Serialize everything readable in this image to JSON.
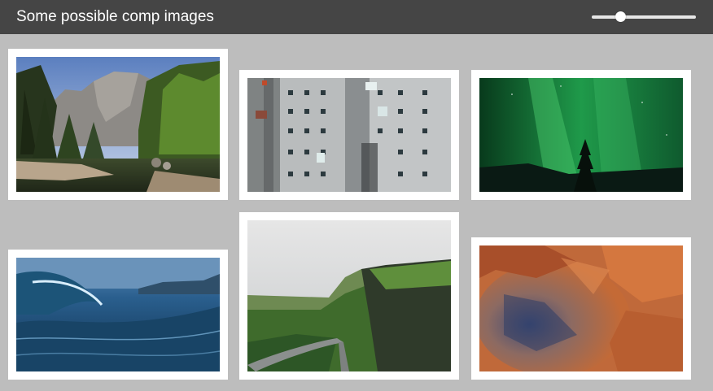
{
  "header": {
    "title": "Some possible comp images",
    "zoom_slider": {
      "level": 0.27
    }
  },
  "gallery": {
    "images": [
      {
        "name": "image-yosemite-valley",
        "subject": "mountain valley with forest and river"
      },
      {
        "name": "image-weathered-building",
        "subject": "weathered concrete building facade"
      },
      {
        "name": "image-aurora-night",
        "subject": "green aurora over a tree silhouette"
      },
      {
        "name": "image-ocean-wave",
        "subject": "breaking blue ocean wave"
      },
      {
        "name": "image-green-cliffs",
        "subject": "green cliffs with winding road"
      },
      {
        "name": "image-crater",
        "subject": "orange crater landscape"
      }
    ]
  },
  "colors": {
    "header_bg": "#454545",
    "page_bg": "#bdbdbd",
    "frame": "#ffffff"
  }
}
